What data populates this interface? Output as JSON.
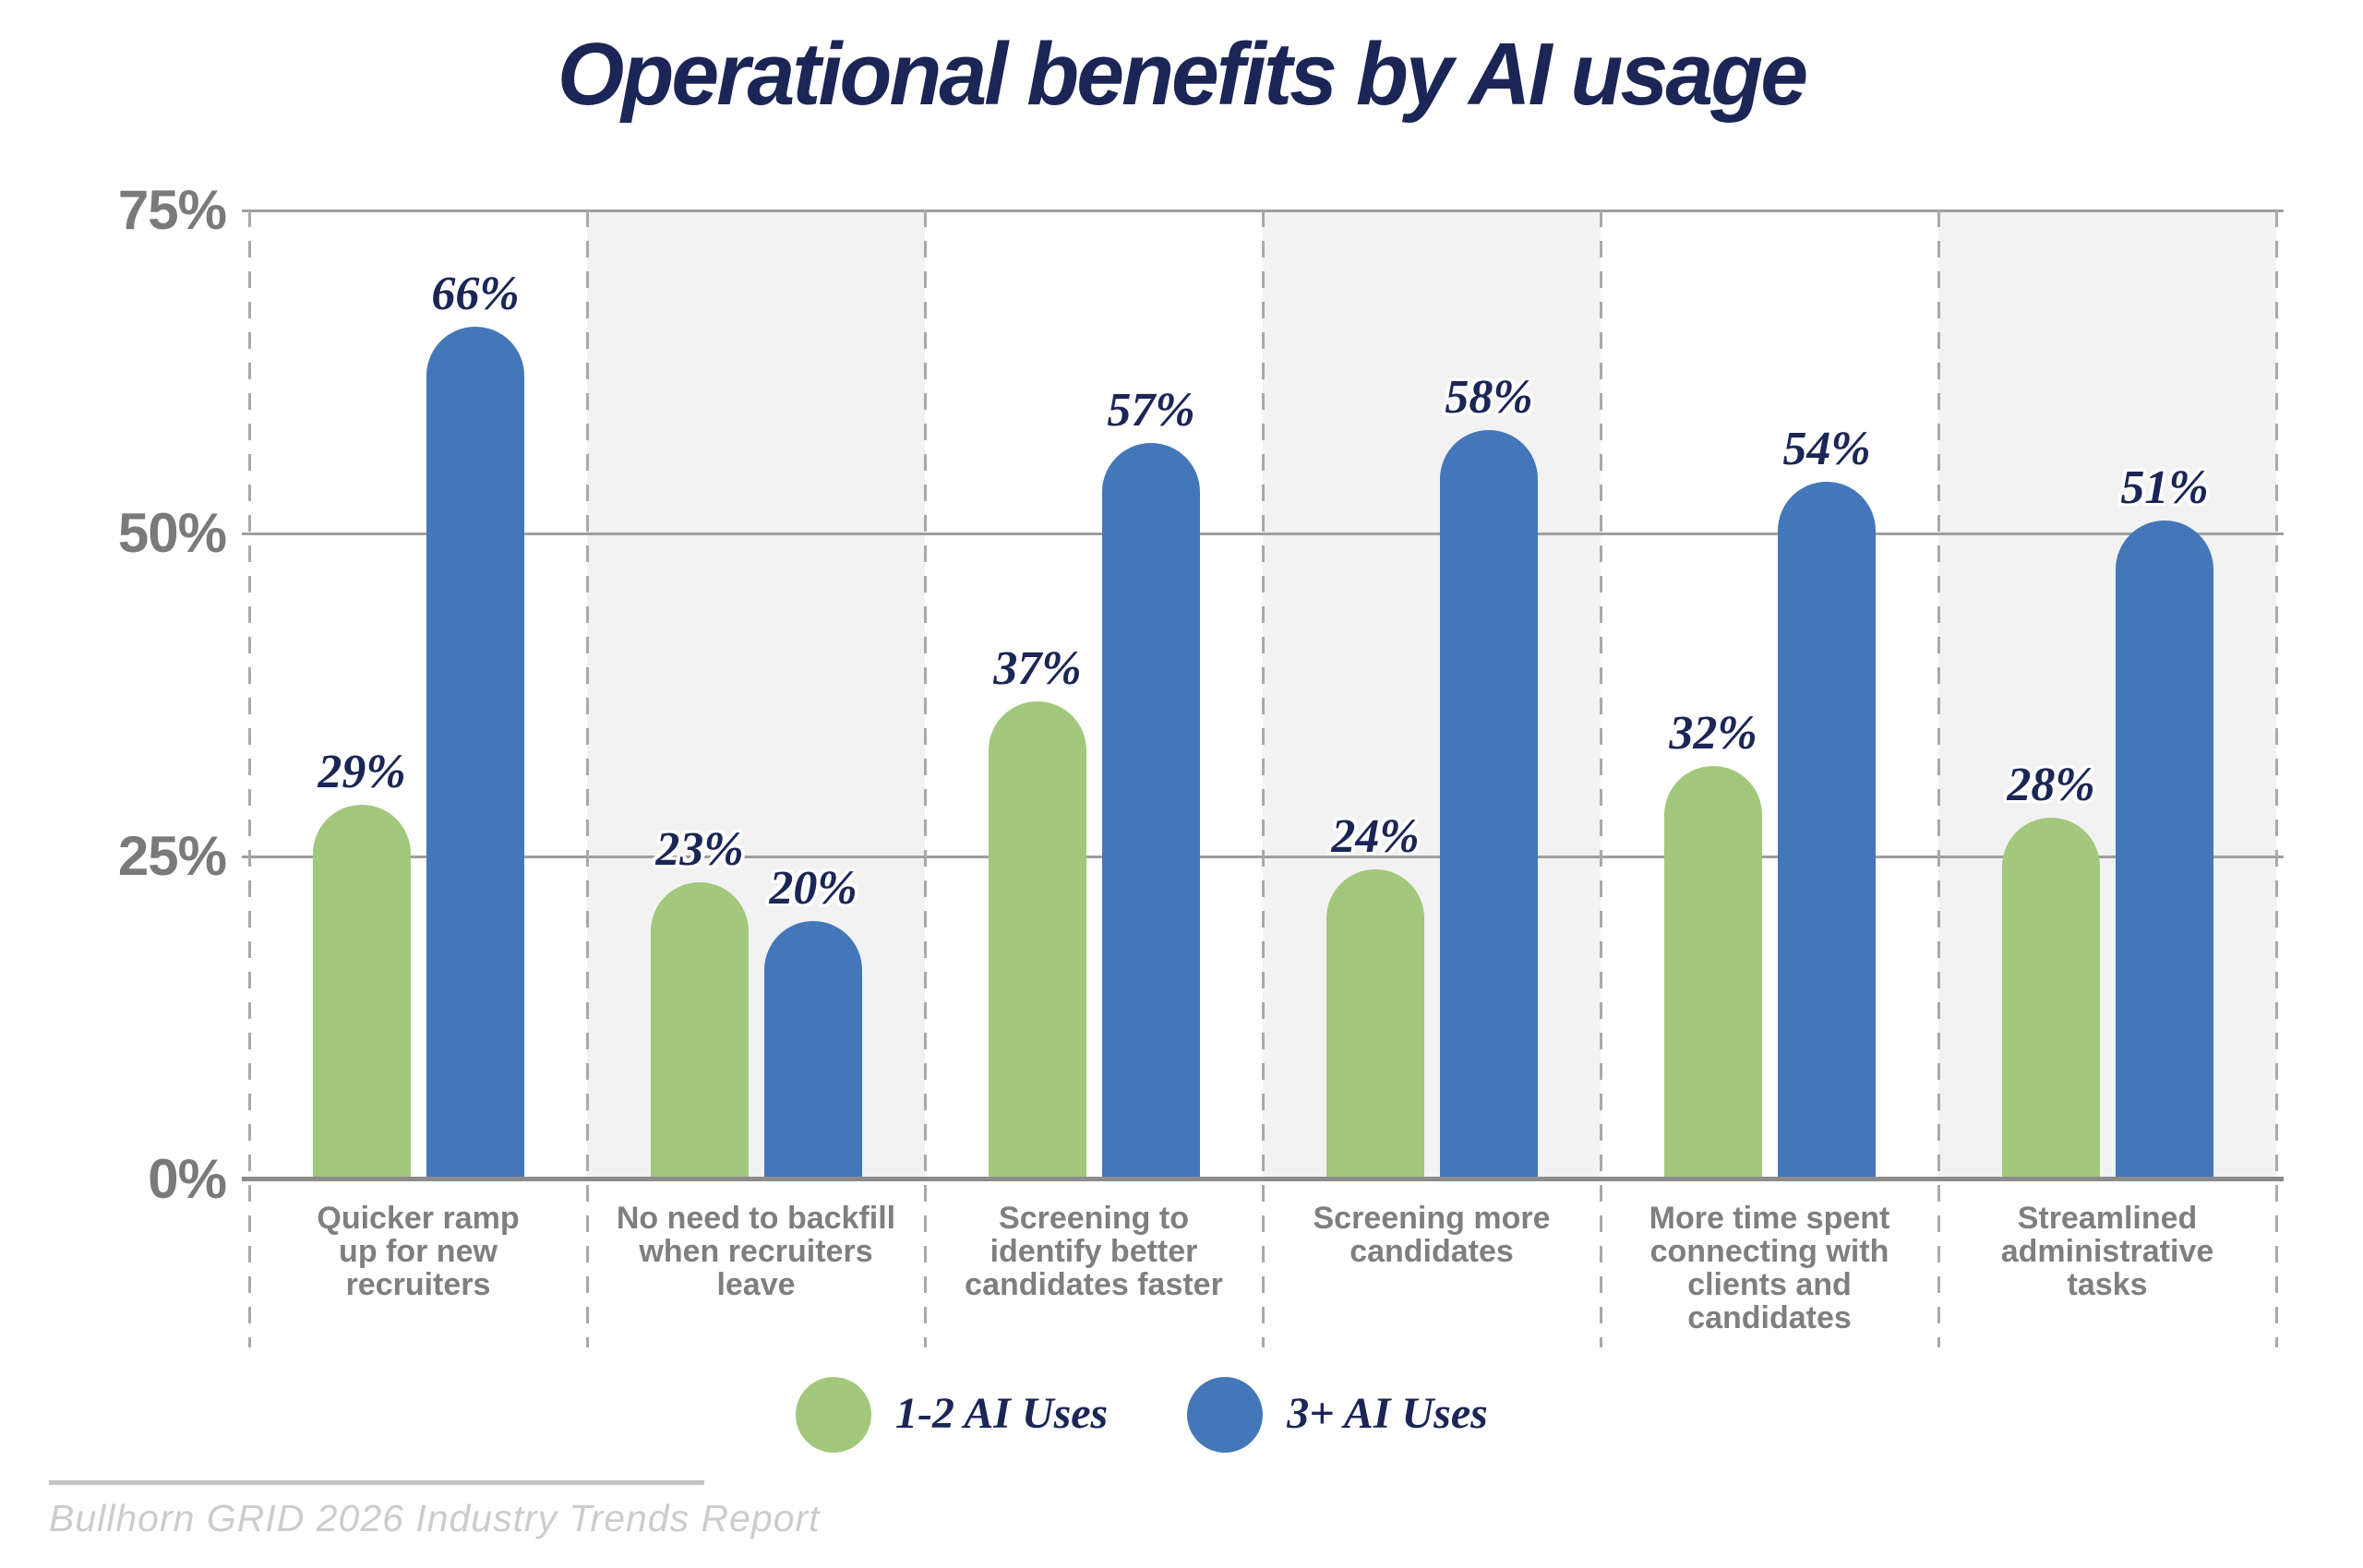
{
  "title": "Operational benefits by AI usage",
  "colors": {
    "navy": "#1b2656",
    "series_green": "#a2c87c",
    "series_blue": "#4377b9",
    "gridline": "#9e9e9e",
    "axis": "#8c8c8c",
    "dashed_separator": "#a9a9a9",
    "band_gray": "#f2f2f3",
    "band_white": "#ffffff",
    "category_gray": "#7f7f7f",
    "tick_gray": "#7a7a7a",
    "source_gray": "#cccccc",
    "source_rule_gray": "#c3c3c3"
  },
  "chart_data": {
    "type": "bar",
    "title": "Operational benefits by AI usage",
    "categories": [
      "Quicker ramp up for new recruiters",
      "No need to backfill when recruiters leave",
      "Screening to identify better candidates faster",
      "Screening more candidates",
      "More time spent connecting with clients and candidates",
      "Streamlined administrative tasks"
    ],
    "categories_wrapped": [
      "Quicker ramp\nup for new\nrecruiters",
      "No need to backfill\nwhen recruiters\nleave",
      "Screening to\nidentify better\ncandidates faster",
      "Screening more\ncandidates",
      "More time spent\nconnecting with\nclients and\ncandidates",
      "Streamlined\nadministrative\ntasks"
    ],
    "series": [
      {
        "name": "1-2 AI Uses",
        "color": "#a2c87c",
        "values": [
          29,
          23,
          37,
          24,
          32,
          28
        ]
      },
      {
        "name": "3+ AI Uses",
        "color": "#4377b9",
        "values": [
          66,
          20,
          57,
          58,
          54,
          51
        ]
      }
    ],
    "value_suffix": "%",
    "xlabel": "",
    "ylabel": "",
    "ylim": [
      0,
      75
    ],
    "y_ticks": [
      "0%",
      "25%",
      "50%",
      "75%"
    ],
    "grid": "horizontal solid lines at 0/25/50/75, dashed vertical category separators, alternating gray bands",
    "legend_position": "bottom"
  },
  "y_axis": {
    "ticks": [
      {
        "label": "75%",
        "value": 75
      },
      {
        "label": "50%",
        "value": 50
      },
      {
        "label": "25%",
        "value": 25
      },
      {
        "label": "0%",
        "value": 0
      }
    ]
  },
  "legend": {
    "items": [
      {
        "label": "1-2 AI Uses",
        "color": "#a2c87c"
      },
      {
        "label": "3+ AI Uses",
        "color": "#4377b9"
      }
    ]
  },
  "source": {
    "label": "Bullhorn GRID 2026 Industry Trends Report"
  }
}
